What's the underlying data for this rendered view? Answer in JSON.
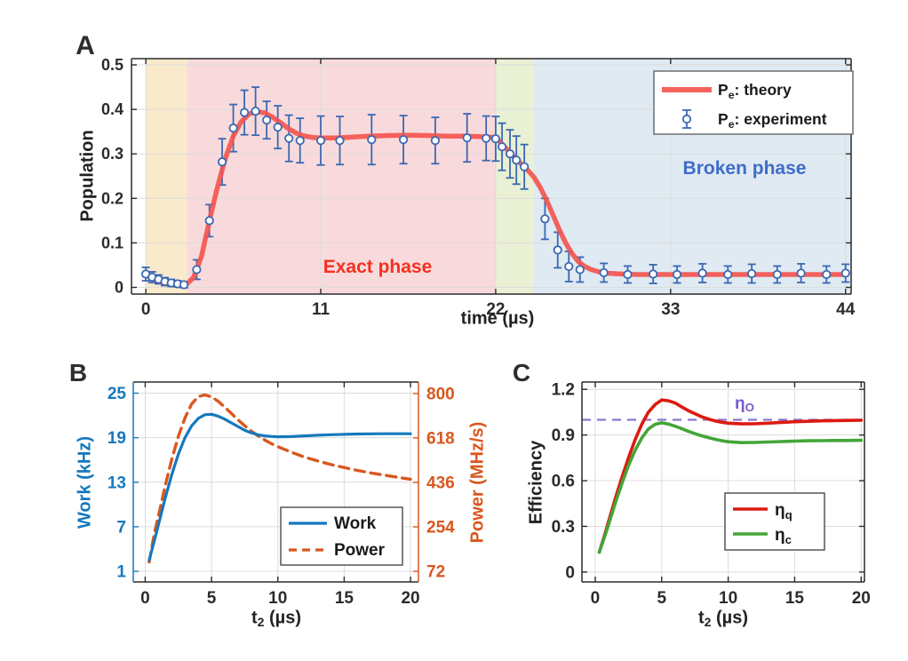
{
  "figure_bg": "#ffffff",
  "colors": {
    "axis": "#2b2b2b",
    "grid": "#dcdcdc",
    "legend_border": "#6f6f6f",
    "legend_text": "#1a1a1a",
    "band_initial": "#faeacc",
    "band_exact": "#f9dadc",
    "band_quench": "#e9f0d4",
    "band_broken": "#dfeaf2",
    "theory_red": "#f4524d",
    "experiment_blue": "#3a68b2",
    "exact_phase_text": "#f5301e",
    "broken_phase_text": "#3f6cc8",
    "work_blue": "#1678be",
    "power_orange": "#d9571e",
    "eta_q_red": "#dc1a10",
    "eta_c_green": "#43a538",
    "eta_o_purple": "#8f75ce",
    "eta_o_label": "#7a5bc7"
  },
  "panel_a": {
    "letter": "A",
    "ylabel": "Population",
    "xlabel": "time (µs)",
    "xtick_labels": [
      "0",
      "11",
      "22",
      "33",
      "44"
    ],
    "ytick_labels": [
      "0",
      "0.1",
      "0.2",
      "0.3",
      "0.4",
      "0.5"
    ],
    "annotation_exact": "Exact phase",
    "annotation_broken": "Broken phase",
    "legend": [
      {
        "rich": [
          [
            "P",
            0
          ],
          [
            "e",
            1
          ],
          [
            ": theory",
            0
          ]
        ],
        "marker": "line"
      },
      {
        "rich": [
          [
            "P",
            0
          ],
          [
            "e",
            1
          ],
          [
            ": experiment",
            0
          ]
        ],
        "marker": "errorbar"
      }
    ]
  },
  "panel_b": {
    "letter": "B",
    "ylabel_left": "Work (kHz)",
    "ylabel_right": "Power (MHz/s)",
    "xlabel_pre": "t",
    "xlabel_sub": "2",
    "xlabel_post": " (µs)",
    "xtick_labels": [
      "0",
      "5",
      "10",
      "15",
      "20"
    ],
    "ytick_left_labels": [
      "1",
      "7",
      "13",
      "19",
      "25"
    ],
    "ytick_right_labels": [
      "72",
      "254",
      "436",
      "618",
      "800"
    ],
    "legend": [
      {
        "rich": [
          [
            "Work",
            0
          ]
        ],
        "style": "solid"
      },
      {
        "rich": [
          [
            "Power",
            0
          ]
        ],
        "style": "dashed"
      }
    ]
  },
  "panel_c": {
    "letter": "C",
    "ylabel": "Efficiency",
    "xlabel_pre": "t",
    "xlabel_sub": "2",
    "xlabel_post": " (µs)",
    "xtick_labels": [
      "0",
      "5",
      "10",
      "15",
      "20"
    ],
    "ytick_labels": [
      "0",
      "0.3",
      "0.6",
      "0.9",
      "1.2"
    ],
    "eta_o_pre": "η",
    "eta_o_sub": "O",
    "legend": [
      {
        "rich": [
          [
            "η",
            0
          ],
          [
            "q",
            1
          ]
        ],
        "color_key": "eta_q_red"
      },
      {
        "rich": [
          [
            "η",
            0
          ],
          [
            "c",
            1
          ]
        ],
        "color_key": "eta_c_green"
      }
    ]
  },
  "chart_data": [
    {
      "panel": "A",
      "type": "line",
      "title": "",
      "xlabel": "time (µs)",
      "ylabel": "Population",
      "xlim": [
        0,
        44
      ],
      "ylim": [
        0,
        0.5
      ],
      "xticks": [
        0,
        11,
        22,
        33,
        44
      ],
      "yticks": [
        0,
        0.1,
        0.2,
        0.3,
        0.4,
        0.5
      ],
      "grid": true,
      "legend_position": "top-right",
      "regions": [
        {
          "name": "initial",
          "x": [
            0,
            2.6
          ],
          "color_key": "band_initial"
        },
        {
          "name": "Exact phase",
          "x": [
            2.6,
            22
          ],
          "color_key": "band_exact"
        },
        {
          "name": "quench",
          "x": [
            22,
            24.4
          ],
          "color_key": "band_quench"
        },
        {
          "name": "Broken phase",
          "x": [
            24.4,
            44.35
          ],
          "color_key": "band_broken"
        }
      ],
      "series": [
        {
          "name": "Pe: theory",
          "type": "line",
          "color_key": "theory_red",
          "width": 5.5,
          "x": [
            0,
            0.5,
            1,
            1.5,
            2,
            2.5,
            3,
            3.5,
            4,
            4.5,
            5,
            5.5,
            6,
            6.5,
            7,
            7.5,
            8,
            8.5,
            9,
            9.5,
            10,
            10.5,
            11,
            12,
            13,
            14,
            15,
            16,
            17,
            18,
            19,
            20,
            21,
            22,
            22.5,
            23,
            23.5,
            24,
            24.4,
            24.8,
            25.2,
            25.6,
            26,
            26.4,
            26.8,
            27.2,
            27.6,
            28,
            28.5,
            29,
            30,
            31,
            32,
            34,
            36,
            38,
            40,
            42,
            44
          ],
          "y": [
            0.028,
            0.018,
            0.011,
            0.007,
            0.005,
            0.005,
            0.022,
            0.07,
            0.15,
            0.225,
            0.29,
            0.34,
            0.372,
            0.39,
            0.395,
            0.392,
            0.382,
            0.369,
            0.356,
            0.346,
            0.34,
            0.337,
            0.336,
            0.336,
            0.338,
            0.34,
            0.341,
            0.342,
            0.342,
            0.341,
            0.34,
            0.34,
            0.339,
            0.337,
            0.318,
            0.299,
            0.281,
            0.264,
            0.248,
            0.225,
            0.196,
            0.163,
            0.13,
            0.1,
            0.076,
            0.058,
            0.047,
            0.04,
            0.035,
            0.032,
            0.03,
            0.029,
            0.029,
            0.029,
            0.029,
            0.029,
            0.029,
            0.029,
            0.029
          ]
        },
        {
          "name": "Pe: experiment",
          "type": "errorbar",
          "color_key": "experiment_blue",
          "x": [
            0,
            0.4,
            0.8,
            1.2,
            1.6,
            2.0,
            2.4,
            3.2,
            4.0,
            4.8,
            5.5,
            6.2,
            6.9,
            7.6,
            8.3,
            9.0,
            9.7,
            11.0,
            12.2,
            14.2,
            16.2,
            18.2,
            20.2,
            21.4,
            22.0,
            22.4,
            22.9,
            23.3,
            23.8,
            25.1,
            25.9,
            26.6,
            27.3,
            28.8,
            30.3,
            31.9,
            33.4,
            35.0,
            36.6,
            38.1,
            39.7,
            41.2,
            42.8,
            44.0
          ],
          "y": [
            0.03,
            0.023,
            0.018,
            0.013,
            0.01,
            0.008,
            0.006,
            0.04,
            0.15,
            0.282,
            0.358,
            0.393,
            0.396,
            0.376,
            0.36,
            0.335,
            0.33,
            0.33,
            0.33,
            0.332,
            0.332,
            0.33,
            0.336,
            0.335,
            0.334,
            0.316,
            0.3,
            0.286,
            0.271,
            0.154,
            0.084,
            0.047,
            0.04,
            0.033,
            0.029,
            0.03,
            0.029,
            0.032,
            0.029,
            0.031,
            0.029,
            0.032,
            0.029,
            0.032
          ],
          "yerr": [
            0.015,
            0.012,
            0.01,
            0.009,
            0.008,
            0.007,
            0.007,
            0.022,
            0.036,
            0.052,
            0.053,
            0.05,
            0.054,
            0.042,
            0.048,
            0.052,
            0.05,
            0.055,
            0.054,
            0.056,
            0.054,
            0.052,
            0.054,
            0.05,
            0.05,
            0.053,
            0.054,
            0.054,
            0.05,
            0.046,
            0.04,
            0.034,
            0.028,
            0.021,
            0.019,
            0.021,
            0.019,
            0.021,
            0.019,
            0.021,
            0.019,
            0.021,
            0.019,
            0.02
          ]
        }
      ]
    },
    {
      "panel": "B",
      "type": "line",
      "title": "",
      "xlabel": "t2 (µs)",
      "ylabel_left": "Work (kHz)",
      "ylabel_right": "Power (MHz/s)",
      "xlim": [
        0,
        20
      ],
      "ylim_left": [
        1,
        25
      ],
      "ylim_right": [
        72,
        800
      ],
      "xticks": [
        0,
        5,
        10,
        15,
        20
      ],
      "yticks_left": [
        1,
        7,
        13,
        19,
        25
      ],
      "yticks_right": [
        72,
        254,
        436,
        618,
        800
      ],
      "grid": true,
      "legend_position": "bottom-right",
      "series": [
        {
          "name": "Work",
          "axis": "left",
          "type": "line",
          "style": "solid",
          "color_key": "work_blue",
          "width": 3.2,
          "x": [
            0.3,
            0.7,
            1,
            1.5,
            2,
            2.5,
            3,
            3.5,
            4,
            4.5,
            5,
            5.5,
            6,
            6.5,
            7,
            7.5,
            8,
            8.5,
            9,
            9.5,
            10,
            11,
            12,
            13,
            14,
            15,
            16,
            17,
            18,
            19,
            20
          ],
          "y": [
            2.5,
            5.2,
            7.3,
            10.8,
            14.0,
            16.8,
            19.0,
            20.6,
            21.6,
            22.1,
            22.15,
            21.9,
            21.5,
            21.0,
            20.5,
            20.0,
            19.65,
            19.4,
            19.25,
            19.17,
            19.13,
            19.15,
            19.25,
            19.33,
            19.4,
            19.45,
            19.5,
            19.52,
            19.53,
            19.54,
            19.54
          ]
        },
        {
          "name": "Power",
          "axis": "right",
          "type": "line",
          "style": "dashed",
          "color_key": "power_orange",
          "width": 3.4,
          "x": [
            0.3,
            0.7,
            1,
            1.5,
            2,
            2.5,
            3,
            3.5,
            4,
            4.5,
            5,
            5.5,
            6,
            6.5,
            7,
            7.5,
            8,
            8.5,
            9,
            9.5,
            10,
            11,
            12,
            13,
            14,
            15,
            16,
            17,
            18,
            19,
            20
          ],
          "y": [
            110,
            230,
            300,
            420,
            530,
            625,
            700,
            757,
            787,
            794,
            786,
            768,
            744,
            718,
            692,
            668,
            646,
            627,
            610,
            595,
            582,
            560,
            540,
            524,
            509,
            497,
            485,
            475,
            466,
            457,
            449
          ]
        }
      ]
    },
    {
      "panel": "C",
      "type": "line",
      "title": "",
      "xlabel": "t2 (µs)",
      "ylabel": "Efficiency",
      "xlim": [
        0,
        20
      ],
      "ylim": [
        0,
        1.2
      ],
      "xticks": [
        0,
        5,
        10,
        15,
        20
      ],
      "yticks": [
        0,
        0.3,
        0.6,
        0.9,
        1.2
      ],
      "grid": true,
      "legend_position": "bottom-right",
      "reference_line": {
        "y": 1.0,
        "label": "ηO",
        "color_key": "eta_o_purple",
        "style": "dashed"
      },
      "series": [
        {
          "name": "ηq",
          "type": "line",
          "style": "solid",
          "color_key": "eta_q_red",
          "width": 3.6,
          "x": [
            0.3,
            0.7,
            1,
            1.5,
            2,
            2.5,
            3,
            3.5,
            4,
            4.5,
            5,
            5.5,
            6,
            6.5,
            7,
            7.5,
            8,
            8.5,
            9,
            9.5,
            10,
            11,
            12,
            13,
            14,
            15,
            16,
            17,
            18,
            19,
            20
          ],
          "y": [
            0.13,
            0.24,
            0.33,
            0.48,
            0.62,
            0.75,
            0.87,
            0.97,
            1.05,
            1.1,
            1.13,
            1.125,
            1.11,
            1.085,
            1.06,
            1.04,
            1.02,
            1.005,
            0.993,
            0.984,
            0.978,
            0.973,
            0.974,
            0.978,
            0.983,
            0.987,
            0.99,
            0.993,
            0.995,
            0.996,
            0.997
          ]
        },
        {
          "name": "ηc",
          "type": "line",
          "style": "solid",
          "color_key": "eta_c_green",
          "width": 3.6,
          "x": [
            0.3,
            0.7,
            1,
            1.5,
            2,
            2.5,
            3,
            3.5,
            4,
            4.5,
            5,
            5.5,
            6,
            6.5,
            7,
            7.5,
            8,
            8.5,
            9,
            9.5,
            10,
            11,
            12,
            13,
            14,
            15,
            16,
            17,
            18,
            19,
            20
          ],
          "y": [
            0.13,
            0.23,
            0.31,
            0.45,
            0.58,
            0.7,
            0.8,
            0.88,
            0.94,
            0.97,
            0.98,
            0.972,
            0.958,
            0.942,
            0.925,
            0.909,
            0.895,
            0.883,
            0.872,
            0.863,
            0.856,
            0.85,
            0.851,
            0.854,
            0.857,
            0.86,
            0.862,
            0.863,
            0.864,
            0.864,
            0.865
          ]
        }
      ]
    }
  ]
}
